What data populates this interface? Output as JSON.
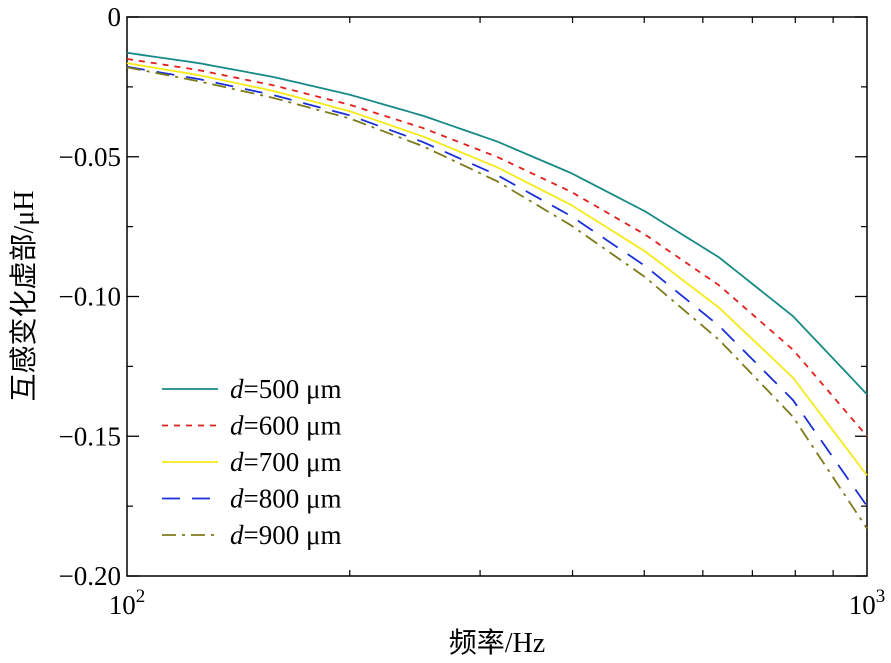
{
  "chart_data": {
    "type": "line",
    "title": "",
    "xlabel": "频率/Hz",
    "ylabel": "互感变化虚部/μH",
    "x_scale": "log",
    "xlim": [
      100,
      1000
    ],
    "ylim": [
      -0.2,
      0
    ],
    "grid": false,
    "legend_position": "center-left",
    "x_ticks": [
      {
        "value": 100,
        "base": "10",
        "exp": "2"
      },
      {
        "value": 1000,
        "base": "10",
        "exp": "3"
      }
    ],
    "y_ticks": [
      {
        "value": 0,
        "label": "0"
      },
      {
        "value": -0.05,
        "label": "−0.05"
      },
      {
        "value": -0.1,
        "label": "−0.10"
      },
      {
        "value": -0.15,
        "label": "−0.15"
      },
      {
        "value": -0.2,
        "label": "−0.20"
      }
    ],
    "x": [
      100,
      125,
      158,
      200,
      251,
      316,
      398,
      501,
      631,
      794,
      1000
    ],
    "series": [
      {
        "name_italic": "d",
        "name_rest": "=500 μm",
        "color": "#178a86",
        "dash": "",
        "values": [
          -0.0128,
          -0.0165,
          -0.0215,
          -0.0278,
          -0.0353,
          -0.0445,
          -0.0558,
          -0.0695,
          -0.086,
          -0.107,
          -0.135
        ]
      },
      {
        "name_italic": "d",
        "name_rest": "=600 μm",
        "color": "#e0201b",
        "dash": "6,6",
        "values": [
          -0.015,
          -0.019,
          -0.0245,
          -0.0314,
          -0.0397,
          -0.05,
          -0.0625,
          -0.0778,
          -0.096,
          -0.119,
          -0.15
        ]
      },
      {
        "name_italic": "d",
        "name_rest": "=700 μm",
        "color": "#f5ea18",
        "dash": "",
        "values": [
          -0.0165,
          -0.0208,
          -0.0265,
          -0.0337,
          -0.0427,
          -0.0537,
          -0.0672,
          -0.0838,
          -0.104,
          -0.129,
          -0.164
        ]
      },
      {
        "name_italic": "d",
        "name_rest": "=800 μm",
        "color": "#1a2fd6",
        "dash": "18,12",
        "values": [
          -0.0178,
          -0.0222,
          -0.028,
          -0.0352,
          -0.0447,
          -0.0565,
          -0.0712,
          -0.089,
          -0.1105,
          -0.137,
          -0.175
        ]
      },
      {
        "name_italic": "d",
        "name_rest": "=900 μm",
        "color": "#7d7a1a",
        "dash": "14,6,3,6",
        "values": [
          -0.018,
          -0.023,
          -0.029,
          -0.0363,
          -0.0462,
          -0.0587,
          -0.0745,
          -0.093,
          -0.1155,
          -0.143,
          -0.183
        ]
      }
    ]
  }
}
